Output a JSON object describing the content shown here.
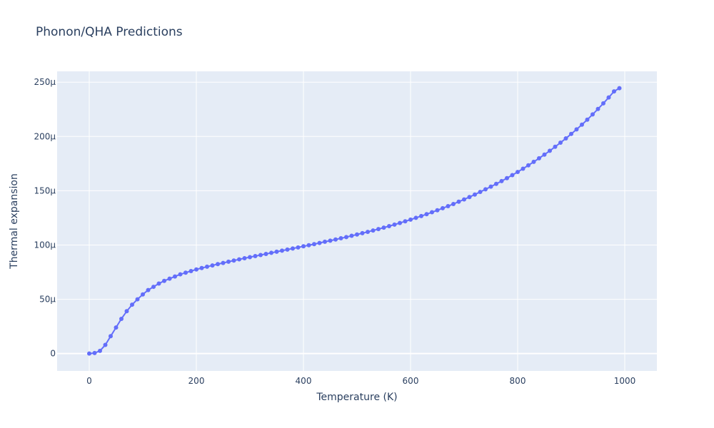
{
  "chart_data": {
    "type": "line",
    "title": "Phonon/QHA Predictions",
    "xlabel": "Temperature (K)",
    "ylabel": "Thermal expansion",
    "xlim": [
      -60,
      1060
    ],
    "ylim": [
      -16,
      260
    ],
    "y_unit": "µ (×10⁻⁶)",
    "x_ticks": [
      0,
      200,
      400,
      600,
      800,
      1000
    ],
    "x_tick_labels": [
      "0",
      "200",
      "400",
      "600",
      "800",
      "1000"
    ],
    "y_ticks": [
      0,
      50,
      100,
      150,
      200,
      250
    ],
    "y_tick_labels": [
      "0",
      "50µ",
      "100µ",
      "150µ",
      "200µ",
      "250µ"
    ],
    "grid": true,
    "markers": true,
    "colors": {
      "series": "#636efa",
      "plot_bg": "#e5ecf6",
      "grid": "#ffffff",
      "text": "#2a3f5f"
    },
    "series": [
      {
        "x": [
          0,
          10,
          20,
          30,
          40,
          50,
          60,
          70,
          80,
          90,
          100,
          110,
          120,
          130,
          140,
          150,
          160,
          170,
          180,
          190,
          200,
          210,
          220,
          230,
          240,
          250,
          260,
          270,
          280,
          290,
          300,
          310,
          320,
          330,
          340,
          350,
          360,
          370,
          380,
          390,
          400,
          410,
          420,
          430,
          440,
          450,
          460,
          470,
          480,
          490,
          500,
          510,
          520,
          530,
          540,
          550,
          560,
          570,
          580,
          590,
          600,
          610,
          620,
          630,
          640,
          650,
          660,
          670,
          680,
          690,
          700,
          710,
          720,
          730,
          740,
          750,
          760,
          770,
          780,
          790,
          800,
          810,
          820,
          830,
          840,
          850,
          860,
          870,
          880,
          890,
          900,
          910,
          920,
          930,
          940,
          950,
          960,
          970,
          980,
          990
        ],
        "y": [
          0,
          0.5,
          2.5,
          8,
          16,
          24,
          32,
          39,
          45,
          50,
          54.5,
          58.5,
          61.5,
          64.5,
          67,
          69,
          71,
          73,
          74.5,
          76,
          77.5,
          78.8,
          80,
          81.2,
          82.4,
          83.5,
          84.6,
          85.7,
          86.8,
          87.8,
          88.8,
          89.8,
          90.8,
          91.8,
          92.8,
          93.8,
          94.8,
          95.8,
          96.8,
          97.8,
          98.8,
          99.8,
          100.8,
          101.9,
          103,
          104,
          105.1,
          106.2,
          107.3,
          108.5,
          109.7,
          110.9,
          112.1,
          113.4,
          114.7,
          116,
          117.4,
          118.8,
          120.3,
          121.8,
          123.4,
          125,
          126.7,
          128.4,
          130.2,
          132,
          133.9,
          135.8,
          137.8,
          139.9,
          142,
          144.2,
          146.5,
          148.9,
          151.3,
          153.8,
          156.3,
          158.9,
          161.6,
          164.4,
          167.3,
          170.3,
          173.4,
          176.6,
          179.9,
          183.3,
          186.8,
          190.5,
          194.3,
          198.2,
          202.3,
          206.5,
          210.9,
          215.5,
          220.3,
          225.3,
          230.5,
          235.9,
          241.5,
          244.5
        ]
      }
    ]
  }
}
